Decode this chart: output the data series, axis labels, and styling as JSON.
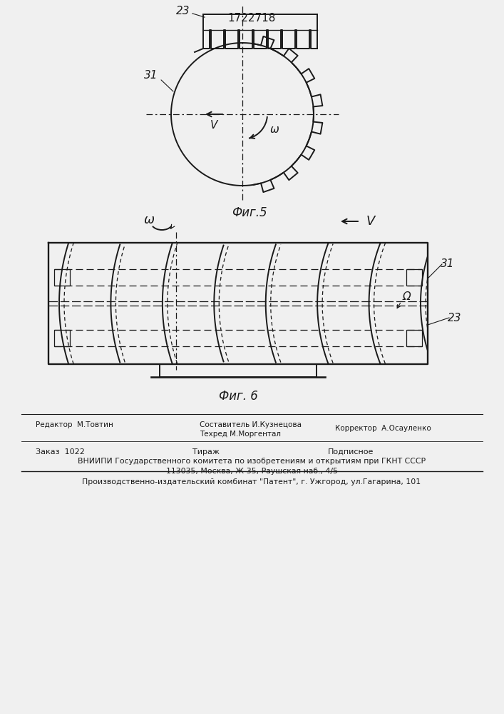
{
  "title": "1722718",
  "fig5_label": "Фиг.5",
  "fig6_label": "Фиг. 6",
  "label_23_fig5": "23",
  "label_31_fig5": "31",
  "label_V_fig5": "V",
  "label_omega_fig5": "ω",
  "label_omega_fig6": "ω",
  "label_V_fig6": "V",
  "label_31_fig6": "31",
  "label_52": "Ω",
  "label_23_fig6": "23",
  "bg_color": "#f0f0f0",
  "line_color": "#1a1a1a"
}
